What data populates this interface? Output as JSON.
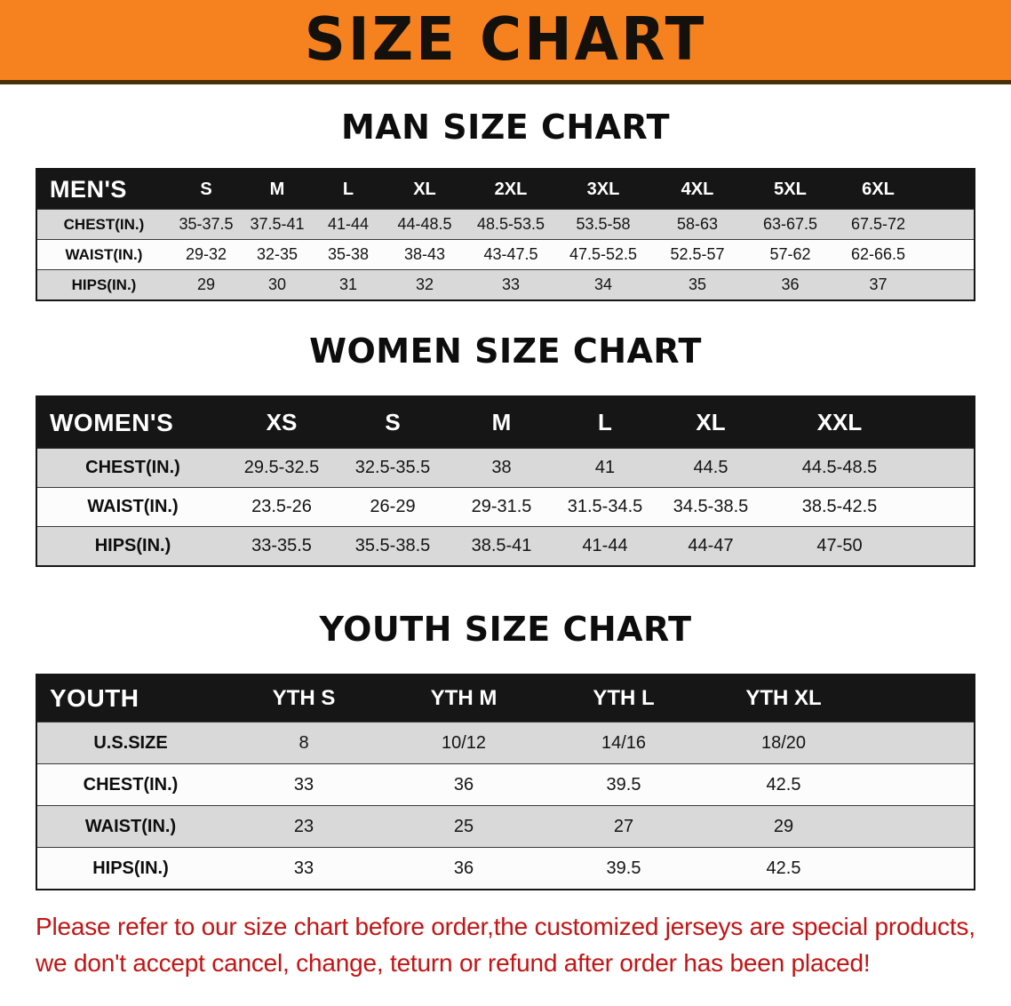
{
  "banner": {
    "title": "SIZE CHART",
    "bg_color": "#f5821f"
  },
  "men": {
    "heading": "MAN SIZE CHART",
    "label": "MEN'S",
    "columns": [
      "S",
      "M",
      "L",
      "XL",
      "2XL",
      "3XL",
      "4XL",
      "5XL",
      "6XL"
    ],
    "rows": [
      {
        "label": "CHEST(IN.)",
        "values": [
          "35-37.5",
          "37.5-41",
          "41-44",
          "44-48.5",
          "48.5-53.5",
          "53.5-58",
          "58-63",
          "63-67.5",
          "67.5-72"
        ]
      },
      {
        "label": "WAIST(IN.)",
        "values": [
          "29-32",
          "32-35",
          "35-38",
          "38-43",
          "43-47.5",
          "47.5-52.5",
          "52.5-57",
          "57-62",
          "62-66.5"
        ]
      },
      {
        "label": "HIPS(IN.)",
        "values": [
          "29",
          "30",
          "31",
          "32",
          "33",
          "34",
          "35",
          "36",
          "37"
        ]
      }
    ]
  },
  "women": {
    "heading": "WOMEN SIZE CHART",
    "label": "WOMEN'S",
    "columns": [
      "XS",
      "S",
      "M",
      "L",
      "XL",
      "XXL"
    ],
    "rows": [
      {
        "label": "CHEST(IN.)",
        "values": [
          "29.5-32.5",
          "32.5-35.5",
          "38",
          "41",
          "44.5",
          "44.5-48.5"
        ]
      },
      {
        "label": "WAIST(IN.)",
        "values": [
          "23.5-26",
          "26-29",
          "29-31.5",
          "31.5-34.5",
          "34.5-38.5",
          "38.5-42.5"
        ]
      },
      {
        "label": "HIPS(IN.)",
        "values": [
          "33-35.5",
          "35.5-38.5",
          "38.5-41",
          "41-44",
          "44-47",
          "47-50"
        ]
      }
    ]
  },
  "youth": {
    "heading": "YOUTH SIZE CHART",
    "label": "YOUTH",
    "columns": [
      "YTH S",
      "YTH M",
      "YTH L",
      "YTH XL"
    ],
    "rows": [
      {
        "label": "U.S.SIZE",
        "values": [
          "8",
          "10/12",
          "14/16",
          "18/20"
        ]
      },
      {
        "label": "CHEST(IN.)",
        "values": [
          "33",
          "36",
          "39.5",
          "42.5"
        ]
      },
      {
        "label": "WAIST(IN.)",
        "values": [
          "23",
          "25",
          "27",
          "29"
        ]
      },
      {
        "label": "HIPS(IN.)",
        "values": [
          "33",
          "36",
          "39.5",
          "42.5"
        ]
      }
    ]
  },
  "disclaimer": {
    "line1": "Please refer to our size chart before order,the customized jerseys are special products,",
    "line2": "we don't accept cancel, change, teturn or refund after order has been placed!",
    "color": "#c41414"
  }
}
